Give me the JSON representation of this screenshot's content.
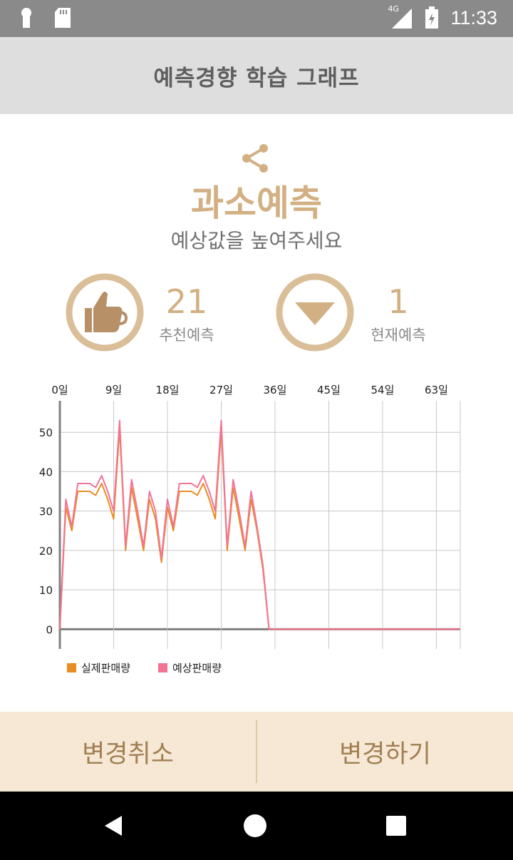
{
  "status_bar": {
    "time": "11:33",
    "network": "4G",
    "icons": [
      "keyhole-icon",
      "sd-card-icon",
      "signal-icon",
      "battery-icon"
    ]
  },
  "header": {
    "title": "예측경향 학습 그래프"
  },
  "main": {
    "share_icon": "share-icon",
    "headline": "과소예측",
    "subtitle": "예상값을 높여주세요",
    "stats": [
      {
        "icon": "thumbs-up-icon",
        "value": "21",
        "label": "추천예측"
      },
      {
        "icon": "down-triangle-icon",
        "value": "1",
        "label": "현재예측"
      }
    ]
  },
  "chart_data": {
    "type": "line",
    "x_ticks": [
      "0일",
      "9일",
      "18일",
      "27일",
      "36일",
      "45일",
      "54일",
      "63일"
    ],
    "y_ticks": [
      "0",
      "10",
      "20",
      "30",
      "40",
      "50"
    ],
    "xlim": [
      0,
      67
    ],
    "ylim": [
      -5,
      58
    ],
    "grid": true,
    "legend_position": "bottom-left",
    "series": [
      {
        "name": "실제판매량",
        "color": "#ea8c24",
        "x": [
          0,
          1,
          2,
          3,
          4,
          5,
          6,
          7,
          8,
          9,
          10,
          11,
          12,
          13,
          14,
          15,
          16,
          17,
          18,
          19,
          20,
          21,
          22,
          23,
          24,
          25,
          26,
          27,
          28,
          29,
          30,
          31,
          32,
          33,
          34,
          35,
          36,
          37,
          38,
          39,
          40,
          41,
          42,
          43,
          44,
          45,
          46,
          47,
          48,
          49,
          50,
          51,
          52,
          53,
          54,
          55,
          56,
          57,
          58,
          59,
          60,
          61,
          62,
          63,
          64,
          65,
          66,
          67
        ],
        "values": [
          0,
          31,
          25,
          35,
          35,
          35,
          34,
          37,
          33,
          28,
          51,
          20,
          36,
          28,
          20,
          33,
          28,
          17,
          31,
          25,
          35,
          35,
          35,
          34,
          37,
          33,
          28,
          51,
          20,
          36,
          28,
          20,
          33,
          25,
          15,
          0,
          0,
          0,
          0,
          0,
          0,
          0,
          0,
          0,
          0,
          0,
          0,
          0,
          0,
          0,
          0,
          0,
          0,
          0,
          0,
          0,
          0,
          0,
          0,
          0,
          0,
          0,
          0,
          0,
          0,
          0,
          0,
          0
        ]
      },
      {
        "name": "예상판매량",
        "color": "#f27395",
        "x": [
          0,
          1,
          2,
          3,
          4,
          5,
          6,
          7,
          8,
          9,
          10,
          11,
          12,
          13,
          14,
          15,
          16,
          17,
          18,
          19,
          20,
          21,
          22,
          23,
          24,
          25,
          26,
          27,
          28,
          29,
          30,
          31,
          32,
          33,
          34,
          35,
          36,
          37,
          38,
          39,
          40,
          41,
          42,
          43,
          44,
          45,
          46,
          47,
          48,
          49,
          50,
          51,
          52,
          53,
          54,
          55,
          56,
          57,
          58,
          59,
          60,
          61,
          62,
          63,
          64,
          65,
          66,
          67
        ],
        "values": [
          0,
          33,
          26,
          37,
          37,
          37,
          36,
          39,
          35,
          30,
          53,
          21,
          38,
          30,
          21,
          35,
          30,
          18,
          33,
          26,
          37,
          37,
          37,
          36,
          39,
          35,
          30,
          53,
          21,
          38,
          30,
          21,
          35,
          26,
          16,
          0,
          0,
          0,
          0,
          0,
          0,
          0,
          0,
          0,
          0,
          0,
          0,
          0,
          0,
          0,
          0,
          0,
          0,
          0,
          0,
          0,
          0,
          0,
          0,
          0,
          0,
          0,
          0,
          0,
          0,
          0,
          0,
          0
        ]
      }
    ]
  },
  "footer": {
    "cancel_label": "변경취소",
    "apply_label": "변경하기"
  },
  "nav_bar": {
    "icons": [
      "back-icon",
      "home-icon",
      "recents-icon"
    ]
  }
}
